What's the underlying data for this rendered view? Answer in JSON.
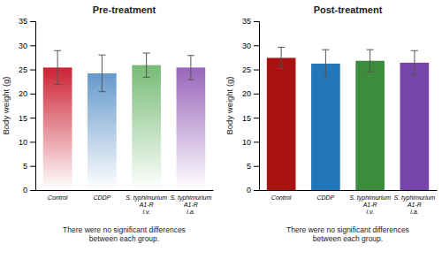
{
  "chart_data": [
    {
      "type": "bar",
      "title": "Pre-treatment",
      "categories": [
        "Control",
        "CDDP",
        "S. typhimurium\nA1-R\ni.v.",
        "S. typhimurium\nA1-R\ni.a."
      ],
      "values": [
        25.4,
        24.2,
        25.9,
        25.4
      ],
      "errors": [
        3.5,
        3.8,
        2.5,
        2.5
      ],
      "colors": [
        "#cc2233",
        "#6699cc",
        "#77bb77",
        "#9966bb"
      ],
      "ylabel": "Body weight (g)",
      "ylim": [
        0,
        35
      ],
      "yticks": [
        0,
        5,
        10,
        15,
        20,
        25,
        30,
        35
      ],
      "annotation": "There were no significant differences\nbetween each group."
    },
    {
      "type": "bar",
      "title": "Post-treatment",
      "categories": [
        "Control",
        "CDDP",
        "S. typhimurium\nA1-R\ni.v.",
        "S. typhimurium\nA1-R\ni.a."
      ],
      "values": [
        27.4,
        26.2,
        26.8,
        26.4
      ],
      "errors": [
        2.2,
        2.9,
        2.3,
        2.5
      ],
      "colors": [
        "#aa1111",
        "#2277bb",
        "#3d8c3d",
        "#7744aa"
      ],
      "ylabel": "Body weight (g)",
      "ylim": [
        0,
        35
      ],
      "yticks": [
        0,
        5,
        10,
        15,
        20,
        25,
        30,
        35
      ],
      "annotation": "There were no significant differences\nbetween each group."
    }
  ]
}
